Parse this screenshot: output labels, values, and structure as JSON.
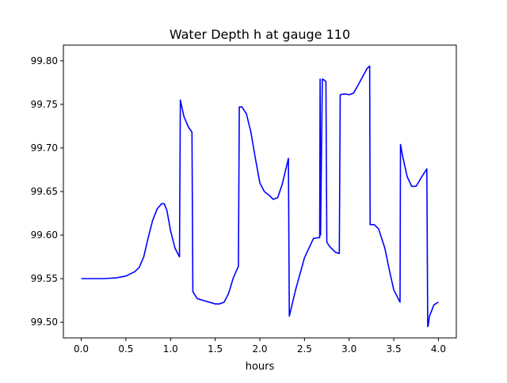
{
  "chart_data": {
    "type": "line",
    "title": "Water Depth h at gauge 110",
    "xlabel": "hours",
    "ylabel": "",
    "xlim": [
      -0.2,
      4.2
    ],
    "ylim": [
      99.482,
      99.818
    ],
    "xticks": [
      0.0,
      0.5,
      1.0,
      1.5,
      2.0,
      2.5,
      3.0,
      3.5,
      4.0
    ],
    "xtick_labels": [
      "0.0",
      "0.5",
      "1.0",
      "1.5",
      "2.0",
      "2.5",
      "3.0",
      "3.5",
      "4.0"
    ],
    "yticks": [
      99.5,
      99.55,
      99.6,
      99.65,
      99.7,
      99.75,
      99.8
    ],
    "ytick_labels": [
      "99.50",
      "99.55",
      "99.60",
      "99.65",
      "99.70",
      "99.75",
      "99.80"
    ],
    "grid": false,
    "series": [
      {
        "color": "#0000ff",
        "x": [
          0.0,
          0.25,
          0.4,
          0.5,
          0.6,
          0.65,
          0.7,
          0.75,
          0.8,
          0.85,
          0.9,
          0.93,
          0.96,
          1.0,
          1.05,
          1.1,
          1.11,
          1.12,
          1.15,
          1.2,
          1.24,
          1.25,
          1.3,
          1.4,
          1.5,
          1.55,
          1.6,
          1.65,
          1.7,
          1.75,
          1.76,
          1.77,
          1.8,
          1.85,
          1.9,
          1.95,
          2.0,
          2.05,
          2.1,
          2.15,
          2.2,
          2.25,
          2.32,
          2.33,
          2.4,
          2.5,
          2.6,
          2.65,
          2.67,
          2.675,
          2.68,
          2.7,
          2.72,
          2.74,
          2.75,
          2.78,
          2.85,
          2.89,
          2.9,
          2.95,
          3.0,
          3.05,
          3.1,
          3.2,
          3.23,
          3.235,
          3.28,
          3.33,
          3.4,
          3.45,
          3.5,
          3.57,
          3.575,
          3.6,
          3.65,
          3.7,
          3.75,
          3.82,
          3.87,
          3.88,
          3.885,
          3.9,
          3.95,
          4.0
        ],
        "y": [
          99.55,
          99.55,
          99.551,
          99.553,
          99.558,
          99.563,
          99.575,
          99.597,
          99.617,
          99.63,
          99.636,
          99.636,
          99.628,
          99.605,
          99.585,
          99.575,
          99.755,
          99.75,
          99.736,
          99.724,
          99.718,
          99.535,
          99.527,
          99.524,
          99.521,
          99.521,
          99.523,
          99.533,
          99.55,
          99.562,
          99.564,
          99.747,
          99.747,
          99.739,
          99.718,
          99.688,
          99.66,
          99.65,
          99.646,
          99.641,
          99.643,
          99.658,
          99.688,
          99.507,
          99.537,
          99.574,
          99.596,
          99.597,
          99.597,
          99.779,
          99.6,
          99.779,
          99.778,
          99.776,
          99.592,
          99.587,
          99.58,
          99.579,
          99.761,
          99.762,
          99.761,
          99.763,
          99.772,
          99.791,
          99.794,
          99.612,
          99.612,
          99.607,
          99.585,
          99.56,
          99.537,
          99.523,
          99.704,
          99.69,
          99.667,
          99.656,
          99.656,
          99.668,
          99.676,
          99.495,
          99.496,
          99.507,
          99.52,
          99.523
        ]
      }
    ]
  }
}
